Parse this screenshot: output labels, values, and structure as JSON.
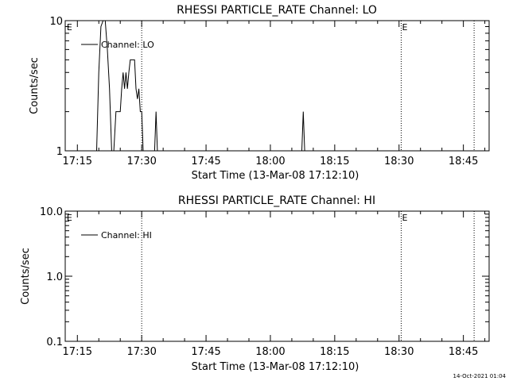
{
  "chart_data": [
    {
      "type": "line",
      "title": "RHESSI PARTICLE_RATE Channel: LO",
      "xlabel": "Start Time (13-Mar-08 17:12:10)",
      "ylabel": "Counts/sec",
      "yscale": "log",
      "ylim": [
        1,
        10
      ],
      "xlim": [
        "17:12:10",
        "18:51:00"
      ],
      "x_ticks": [
        "17:15",
        "17:30",
        "17:45",
        "18:00",
        "18:15",
        "18:30",
        "18:45"
      ],
      "y_ticks": [
        "1",
        "10"
      ],
      "legend": {
        "position": "top-left",
        "entries": [
          "Channel: LO"
        ]
      },
      "markers": [
        {
          "x": "17:12:20",
          "label": "E"
        },
        {
          "x": "18:30:30",
          "label": "E"
        }
      ],
      "vlines_dotted": [
        "17:30:00",
        "18:30:30",
        "18:47:30"
      ],
      "series": [
        {
          "name": "Channel: LO",
          "points": [
            [
              "17:18:00",
              1
            ],
            [
              "17:19:30",
              1
            ],
            [
              "17:20:00",
              4
            ],
            [
              "17:20:30",
              9
            ],
            [
              "17:21:00",
              10
            ],
            [
              "17:21:30",
              10
            ],
            [
              "17:22:00",
              6
            ],
            [
              "17:22:30",
              3
            ],
            [
              "17:23:00",
              1
            ],
            [
              "17:23:30",
              1
            ],
            [
              "17:24:00",
              2
            ],
            [
              "17:25:00",
              2
            ],
            [
              "17:25:20",
              3
            ],
            [
              "17:25:40",
              4
            ],
            [
              "17:26:00",
              3
            ],
            [
              "17:26:20",
              4
            ],
            [
              "17:26:40",
              3
            ],
            [
              "17:27:00",
              4
            ],
            [
              "17:27:20",
              5
            ],
            [
              "17:28:20",
              5
            ],
            [
              "17:28:40",
              3
            ],
            [
              "17:29:00",
              2.5
            ],
            [
              "17:29:20",
              3
            ],
            [
              "17:29:40",
              2
            ],
            [
              "17:30:00",
              2
            ],
            [
              "17:30:20",
              1
            ],
            [
              "17:33:00",
              1
            ],
            [
              "17:33:20",
              2
            ],
            [
              "17:33:40",
              1
            ],
            [
              "18:07:20",
              1
            ],
            [
              "18:07:40",
              2
            ],
            [
              "18:08:00",
              1
            ]
          ]
        }
      ]
    },
    {
      "type": "line",
      "title": "RHESSI PARTICLE_RATE Channel: HI",
      "xlabel": "Start Time (13-Mar-08 17:12:10)",
      "ylabel": "Counts/sec",
      "yscale": "log",
      "ylim": [
        0.1,
        10
      ],
      "xlim": [
        "17:12:10",
        "18:51:00"
      ],
      "x_ticks": [
        "17:15",
        "17:30",
        "17:45",
        "18:00",
        "18:15",
        "18:30",
        "18:45"
      ],
      "y_ticks": [
        "0.1",
        "1.0",
        "10.0"
      ],
      "legend": {
        "position": "top-left",
        "entries": [
          "Channel: HI"
        ]
      },
      "markers": [
        {
          "x": "17:12:20",
          "label": "E"
        },
        {
          "x": "18:30:30",
          "label": "E"
        }
      ],
      "vlines_dotted": [
        "17:30:00",
        "18:30:30",
        "18:47:30"
      ],
      "series": [
        {
          "name": "Channel: HI",
          "points": []
        }
      ]
    }
  ],
  "footer_timestamp": "14-Oct-2021 01:04"
}
